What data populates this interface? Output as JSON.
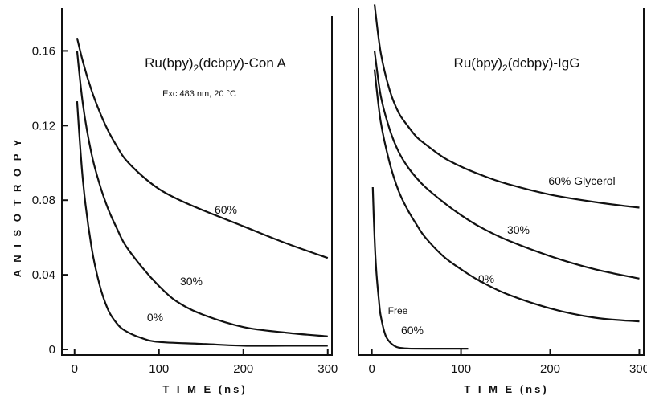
{
  "chart_data": [
    {
      "type": "line",
      "title_parts": {
        "pre": "Ru(bpy)",
        "s1": "2",
        "mid": "(dcbpy)",
        "post": "-Con A"
      },
      "subtitle": "Exc 483 nm, 20 °C",
      "xlabel": "T I M E (ns)",
      "ylabel": "A N I S O T R O P Y",
      "xlim": [
        -15,
        305
      ],
      "ylim": [
        -0.003,
        0.183
      ],
      "xticks": [
        0,
        100,
        200,
        300
      ],
      "xtick_labels": [
        "0",
        "100",
        "200",
        "300"
      ],
      "yticks": [
        0,
        0.04,
        0.08,
        0.12,
        0.16
      ],
      "ytick_labels": [
        "0",
        "0.04",
        "0.08",
        "0.12",
        "0.16"
      ],
      "grid": false,
      "series": [
        {
          "name": "60%",
          "x": [
            3,
            10,
            20,
            30,
            40,
            50,
            60,
            80,
            100,
            120,
            150,
            200,
            250,
            300
          ],
          "y": [
            0.167,
            0.154,
            0.139,
            0.127,
            0.117,
            0.109,
            0.102,
            0.093,
            0.086,
            0.081,
            0.075,
            0.066,
            0.057,
            0.049
          ]
        },
        {
          "name": "30%",
          "x": [
            3,
            10,
            20,
            30,
            40,
            50,
            60,
            80,
            100,
            120,
            150,
            200,
            250,
            300
          ],
          "y": [
            0.16,
            0.131,
            0.105,
            0.088,
            0.075,
            0.065,
            0.056,
            0.044,
            0.034,
            0.026,
            0.019,
            0.012,
            0.009,
            0.007
          ]
        },
        {
          "name": "0%",
          "x": [
            3,
            10,
            20,
            30,
            40,
            50,
            60,
            80,
            100,
            150,
            200,
            250,
            300
          ],
          "y": [
            0.133,
            0.09,
            0.055,
            0.034,
            0.021,
            0.014,
            0.01,
            0.006,
            0.004,
            0.003,
            0.002,
            0.002,
            0.002
          ]
        }
      ]
    },
    {
      "type": "line",
      "title_parts": {
        "pre": "Ru(bpy)",
        "s1": "2",
        "mid": "(dcbpy)",
        "post": "-IgG"
      },
      "xlabel": "T I M E (ns)",
      "xlim": [
        -15,
        305
      ],
      "ylim": [
        -0.003,
        0.183
      ],
      "xticks": [
        0,
        100,
        200,
        300
      ],
      "xtick_labels": [
        "0",
        "100",
        "200",
        "300"
      ],
      "grid": false,
      "series": [
        {
          "name": "60% Glycerol",
          "x": [
            3,
            10,
            20,
            30,
            40,
            50,
            60,
            80,
            100,
            120,
            150,
            200,
            250,
            300
          ],
          "y": [
            0.185,
            0.159,
            0.139,
            0.127,
            0.12,
            0.114,
            0.11,
            0.103,
            0.098,
            0.094,
            0.089,
            0.083,
            0.079,
            0.076
          ]
        },
        {
          "name": "30%",
          "x": [
            3,
            10,
            20,
            30,
            40,
            50,
            60,
            80,
            100,
            120,
            150,
            200,
            250,
            300
          ],
          "y": [
            0.16,
            0.136,
            0.118,
            0.106,
            0.098,
            0.092,
            0.087,
            0.079,
            0.072,
            0.066,
            0.059,
            0.05,
            0.043,
            0.038
          ]
        },
        {
          "name": "0%",
          "x": [
            3,
            10,
            20,
            30,
            40,
            50,
            60,
            80,
            100,
            120,
            150,
            200,
            250,
            300
          ],
          "y": [
            0.15,
            0.122,
            0.1,
            0.085,
            0.075,
            0.067,
            0.06,
            0.05,
            0.043,
            0.037,
            0.03,
            0.022,
            0.017,
            0.015
          ]
        },
        {
          "name": "Free 60%",
          "x": [
            1,
            3,
            5,
            8,
            10,
            15,
            20,
            25,
            30,
            40,
            60,
            80,
            108
          ],
          "y": [
            0.087,
            0.06,
            0.042,
            0.026,
            0.018,
            0.008,
            0.004,
            0.002,
            0.001,
            0.0005,
            0.0004,
            0.0004,
            0.0004
          ]
        }
      ],
      "annotations": [
        "Free"
      ]
    }
  ]
}
